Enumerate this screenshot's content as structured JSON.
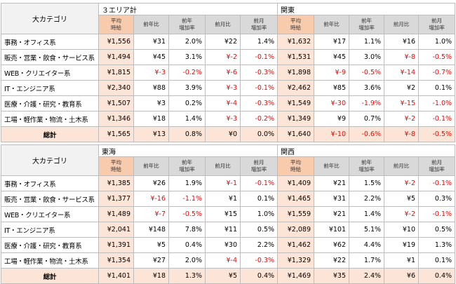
{
  "tables": [
    {
      "category_header": "大カテゴリ",
      "regions": [
        "３エリア計",
        "関東"
      ],
      "columns": [
        "平均\n時給",
        "前年比",
        "前年\n増加率",
        "前月比",
        "前月\n増加率"
      ],
      "rows": [
        {
          "category": "事務・オフィス系",
          "cells": [
            [
              "¥1,556",
              "¥31",
              "2.0%",
              "¥22",
              "1.4%"
            ],
            [
              "¥1,632",
              "¥17",
              "1.1%",
              "¥16",
              "1.0%"
            ]
          ]
        },
        {
          "category": "販売・営業・飲食・サービス系",
          "cells": [
            [
              "¥1,494",
              "¥45",
              "3.1%",
              "¥-2",
              "-0.1%"
            ],
            [
              "¥1,531",
              "¥45",
              "3.0%",
              "¥-8",
              "-0.5%"
            ]
          ]
        },
        {
          "category": "WEB・クリエイター系",
          "cells": [
            [
              "¥1,815",
              "¥-3",
              "-0.2%",
              "¥-6",
              "-0.3%"
            ],
            [
              "¥1,898",
              "¥-9",
              "-0.5%",
              "¥-14",
              "-0.7%"
            ]
          ]
        },
        {
          "category": "IT・エンジニア系",
          "cells": [
            [
              "¥2,340",
              "¥88",
              "3.9%",
              "¥-3",
              "-0.1%"
            ],
            [
              "¥2,462",
              "¥85",
              "3.6%",
              "¥2",
              "0.1%"
            ]
          ]
        },
        {
          "category": "医療・介護・研究・教育系",
          "cells": [
            [
              "¥1,507",
              "¥3",
              "0.2%",
              "¥-4",
              "-0.3%"
            ],
            [
              "¥1,549",
              "¥-30",
              "-1.9%",
              "¥-15",
              "-1.0%"
            ]
          ]
        },
        {
          "category": "工場・軽作業・物流・土木系",
          "cells": [
            [
              "¥1,346",
              "¥18",
              "1.4%",
              "¥-3",
              "-0.2%"
            ],
            [
              "¥1,349",
              "¥9",
              "0.7%",
              "¥-2",
              "-0.1%"
            ]
          ]
        }
      ],
      "total": {
        "category": "総計",
        "cells": [
          [
            "¥1,565",
            "¥13",
            "0.8%",
            "¥0",
            "0.0%"
          ],
          [
            "¥1,640",
            "¥-10",
            "-0.6%",
            "¥-8",
            "-0.5%"
          ]
        ]
      }
    },
    {
      "category_header": "大カテゴリ",
      "regions": [
        "東海",
        "関西"
      ],
      "columns": [
        "平均\n時給",
        "前年比",
        "前年\n増加率",
        "前月比",
        "前月\n増加率"
      ],
      "rows": [
        {
          "category": "事務・オフィス系",
          "cells": [
            [
              "¥1,385",
              "¥26",
              "1.9%",
              "¥-1",
              "-0.1%"
            ],
            [
              "¥1,409",
              "¥21",
              "1.5%",
              "¥-2",
              "-0.1%"
            ]
          ]
        },
        {
          "category": "販売・営業・飲食・サービス系",
          "cells": [
            [
              "¥1,377",
              "¥-16",
              "-1.1%",
              "¥1",
              "0.1%"
            ],
            [
              "¥1,465",
              "¥31",
              "2.2%",
              "¥5",
              "0.3%"
            ]
          ]
        },
        {
          "category": "WEB・クリエイター系",
          "cells": [
            [
              "¥1,489",
              "¥-7",
              "-0.5%",
              "¥15",
              "1.0%"
            ],
            [
              "¥1,559",
              "¥21",
              "1.4%",
              "¥-2",
              "-0.1%"
            ]
          ]
        },
        {
          "category": "IT・エンジニア系",
          "cells": [
            [
              "¥2,041",
              "¥148",
              "7.8%",
              "¥11",
              "0.5%"
            ],
            [
              "¥2,089",
              "¥101",
              "5.1%",
              "¥10",
              "0.5%"
            ]
          ]
        },
        {
          "category": "医療・介護・研究・教育系",
          "cells": [
            [
              "¥1,391",
              "¥5",
              "0.4%",
              "¥30",
              "2.2%"
            ],
            [
              "¥1,462",
              "¥62",
              "4.4%",
              "¥19",
              "1.3%"
            ]
          ]
        },
        {
          "category": "工場・軽作業・物流・土木系",
          "cells": [
            [
              "¥1,354",
              "¥27",
              "2.0%",
              "¥-4",
              "-0.3%"
            ],
            [
              "¥1,329",
              "¥22",
              "1.7%",
              "¥1",
              "0.1%"
            ]
          ]
        }
      ],
      "total": {
        "category": "総計",
        "cells": [
          [
            "¥1,401",
            "¥18",
            "1.3%",
            "¥5",
            "0.4%"
          ],
          [
            "¥1,469",
            "¥35",
            "2.4%",
            "¥6",
            "0.4%"
          ]
        ]
      }
    }
  ]
}
